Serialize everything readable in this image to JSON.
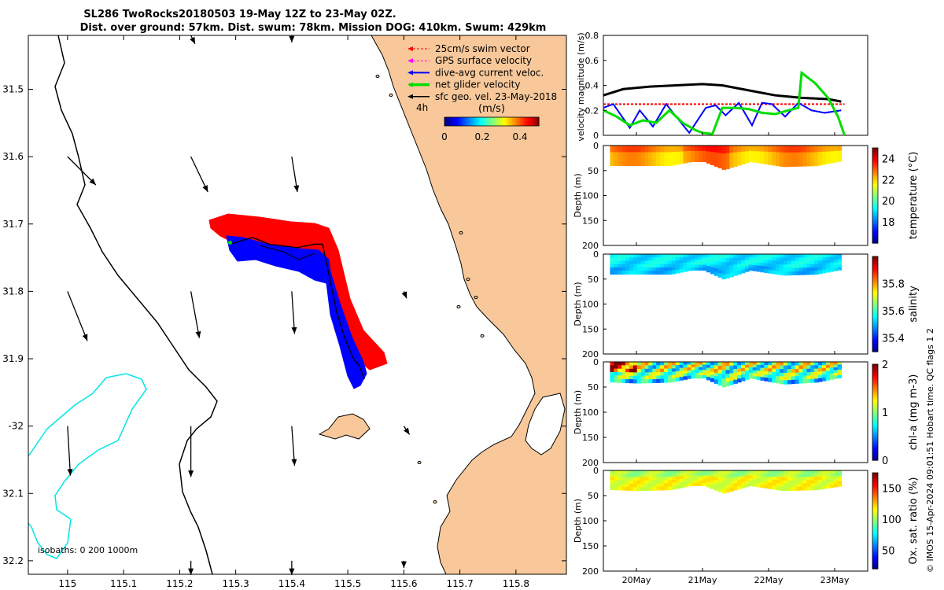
{
  "title_line1": "SL286 TwoRocks20180503 19-May 12Z to 23-May 02Z.",
  "title_line2": "Dist. over ground: 57km. Dist. swum: 78km. Mission DOG: 410km. Swum: 429km",
  "credit": "© IMOS 15-Apr-2024 09:01:51 Hobart time. QC flags 1  2",
  "colors": {
    "land": "#f8c89a",
    "swim": "#ff0000",
    "gps": "#ff00ff",
    "dive": "#0000ff",
    "net": "#00dd00",
    "geo": "#000000",
    "isobath200": "#000000",
    "isobath1000": "#00e5e5"
  },
  "chart_data": [
    {
      "type": "map",
      "name": "glider track and velocities",
      "xlim": [
        114.93,
        115.89
      ],
      "ylim": [
        32.22,
        31.42
      ],
      "xticks": [
        115,
        115.1,
        115.2,
        115.3,
        115.4,
        115.5,
        115.6,
        115.7,
        115.8
      ],
      "xtick_labels": [
        "115",
        "115.1",
        "115.2",
        "115.3",
        "115.4",
        "115.5",
        "115.6",
        "115.7",
        "115.8"
      ],
      "yticks": [
        31.5,
        31.6,
        31.7,
        31.8,
        31.9,
        32,
        32.1,
        32.2
      ],
      "ytick_labels": [
        "31.5",
        "31.6",
        "31.7",
        "31.8",
        "31.9",
        "-32",
        "32.1",
        "32.2"
      ],
      "legend": {
        "placement": "top-right",
        "entries": [
          "25cm/s swim vector",
          "GPS surface velocity",
          "dive-avg current veloc.",
          "net glider velocity",
          "sfc geo. vel. 23-May-2018"
        ],
        "arrow_interval": "4h"
      },
      "colorbar": {
        "label": "(m/s)",
        "ticks": [
          0,
          0.2,
          0.4
        ],
        "range": [
          0,
          0.5
        ]
      },
      "isobaths_label": "isobaths: 0   200  1000m",
      "track": [
        [
          115.29,
          31.73
        ],
        [
          115.33,
          31.72
        ],
        [
          115.36,
          31.73
        ],
        [
          115.41,
          31.735
        ],
        [
          115.44,
          31.73
        ],
        [
          115.455,
          31.73
        ],
        [
          115.47,
          31.79
        ],
        [
          115.48,
          31.83
        ],
        [
          115.495,
          31.87
        ],
        [
          115.51,
          31.9
        ],
        [
          115.52,
          31.91
        ],
        [
          115.53,
          31.93
        ]
      ],
      "geo_vectors": [
        {
          "lon": 115.0,
          "lat": 31.6,
          "u": 0.2,
          "v": -0.2
        },
        {
          "lon": 115.22,
          "lat": 31.6,
          "u": 0.12,
          "v": -0.25
        },
        {
          "lon": 115.4,
          "lat": 31.6,
          "u": 0.04,
          "v": -0.25
        },
        {
          "lon": 115.0,
          "lat": 31.8,
          "u": 0.14,
          "v": -0.35
        },
        {
          "lon": 115.22,
          "lat": 31.8,
          "u": 0.06,
          "v": -0.33
        },
        {
          "lon": 115.4,
          "lat": 31.8,
          "u": 0.02,
          "v": -0.3
        },
        {
          "lon": 115.6,
          "lat": 31.8,
          "u": 0.02,
          "v": -0.05
        },
        {
          "lon": 115.0,
          "lat": 32.0,
          "u": 0.02,
          "v": -0.35
        },
        {
          "lon": 115.22,
          "lat": 32.0,
          "u": 0.0,
          "v": -0.36
        },
        {
          "lon": 115.4,
          "lat": 32.0,
          "u": 0.02,
          "v": -0.28
        },
        {
          "lon": 115.6,
          "lat": 32.0,
          "u": 0.04,
          "v": -0.06
        },
        {
          "lon": 115.22,
          "lat": 31.42,
          "u": 0.03,
          "v": -0.06
        },
        {
          "lon": 115.4,
          "lat": 31.42,
          "u": 0.0,
          "v": -0.05
        },
        {
          "lon": 115.22,
          "lat": 32.2,
          "u": 0.0,
          "v": -0.1
        },
        {
          "lon": 115.4,
          "lat": 32.2,
          "u": 0.0,
          "v": -0.1
        },
        {
          "lon": 115.6,
          "lat": 32.2,
          "u": 0.0,
          "v": -0.05
        }
      ]
    },
    {
      "type": "line",
      "name": "velocity magnitude",
      "ylabel": "velocity magnitude (m/s)",
      "xlim": [
        19.5,
        23.5
      ],
      "ylim": [
        0,
        0.8
      ],
      "yticks": [
        0,
        0.2,
        0.4,
        0.6,
        0.8
      ],
      "ytick_labels": [
        "0",
        "0.2",
        "0.4",
        "0.6",
        "0.8"
      ],
      "series": [
        {
          "name": "sfc geo. vel.",
          "color": "#000000",
          "x": [
            19.5,
            19.8,
            20.2,
            20.6,
            21.0,
            21.3,
            21.7,
            22.1,
            22.5,
            22.9,
            23.1
          ],
          "values": [
            0.32,
            0.37,
            0.39,
            0.4,
            0.41,
            0.4,
            0.36,
            0.32,
            0.3,
            0.29,
            0.27
          ]
        },
        {
          "name": "25cm/s swim",
          "color": "#ff0000",
          "x": [
            19.5,
            23.15
          ],
          "values": [
            0.25,
            0.25
          ]
        },
        {
          "name": "dive-avg current",
          "color": "#0000ff",
          "x": [
            19.5,
            19.65,
            19.9,
            20.05,
            20.25,
            20.45,
            20.6,
            20.8,
            21.05,
            21.2,
            21.35,
            21.55,
            21.75,
            21.9,
            22.05,
            22.25,
            22.45,
            22.65,
            22.85,
            23.1
          ],
          "values": [
            0.22,
            0.25,
            0.06,
            0.2,
            0.07,
            0.25,
            0.15,
            0.02,
            0.22,
            0.24,
            0.16,
            0.26,
            0.08,
            0.26,
            0.25,
            0.15,
            0.26,
            0.2,
            0.18,
            0.2
          ]
        },
        {
          "name": "net glider velocity",
          "color": "#00dd00",
          "x": [
            19.5,
            19.7,
            19.9,
            20.1,
            20.3,
            20.5,
            20.7,
            20.9,
            21.0,
            21.15,
            21.3,
            21.5,
            21.7,
            21.9,
            22.1,
            22.3,
            22.45,
            22.5,
            22.7,
            22.9,
            23.05,
            23.15
          ],
          "values": [
            0.2,
            0.15,
            0.08,
            0.12,
            0.1,
            0.2,
            0.1,
            0.04,
            0.02,
            0.01,
            0.22,
            0.22,
            0.21,
            0.18,
            0.17,
            0.2,
            0.22,
            0.5,
            0.42,
            0.3,
            0.15,
            0.0
          ]
        }
      ]
    },
    {
      "type": "heatmap",
      "name": "temperature section",
      "colorbar_label": "temperature (°C)",
      "clim": [
        16,
        25
      ],
      "cticks": [
        18,
        20,
        22,
        24
      ],
      "ylabel": "Depth (m)",
      "ylim": [
        0,
        200
      ],
      "yticks": [
        0,
        50,
        100,
        150,
        200
      ],
      "xlim": [
        19.5,
        23.5
      ],
      "profile_depth": {
        "x": [
          19.6,
          20.0,
          20.5,
          20.8,
          21.0,
          21.3,
          21.7,
          22.2,
          22.7,
          23.1
        ],
        "values": [
          40,
          40,
          40,
          32,
          32,
          48,
          32,
          42,
          40,
          30
        ]
      },
      "typical_value": 22.4
    },
    {
      "type": "heatmap",
      "name": "salinity section",
      "colorbar_label": "salinity",
      "clim": [
        35.3,
        36.0
      ],
      "cticks": [
        35.4,
        35.6,
        35.8
      ],
      "ylabel": "Depth (m)",
      "ylim": [
        0,
        200
      ],
      "yticks": [
        0,
        50,
        100,
        150,
        200
      ],
      "xlim": [
        19.5,
        23.5
      ],
      "profile_depth": {
        "x": [
          19.6,
          20.0,
          20.5,
          20.8,
          21.0,
          21.3,
          21.7,
          22.2,
          22.7,
          23.1
        ],
        "values": [
          40,
          40,
          40,
          32,
          32,
          50,
          32,
          42,
          40,
          30
        ]
      },
      "typical_value": 35.55
    },
    {
      "type": "heatmap",
      "name": "chlorophyll section",
      "colorbar_label": "chl-a (mg m-3)",
      "clim": [
        0,
        2
      ],
      "cticks": [
        0,
        1,
        2
      ],
      "ylabel": "Depth (m)",
      "ylim": [
        0,
        200
      ],
      "yticks": [
        0,
        50,
        100,
        150,
        200
      ],
      "xlim": [
        19.5,
        23.5
      ],
      "profile_depth": {
        "x": [
          19.6,
          20.0,
          20.5,
          20.8,
          21.0,
          21.3,
          21.7,
          22.2,
          22.7,
          23.1
        ],
        "values": [
          40,
          42,
          40,
          32,
          32,
          50,
          32,
          44,
          40,
          30
        ]
      },
      "typical_value": 1.0
    },
    {
      "type": "heatmap",
      "name": "oxygen saturation section",
      "colorbar_label": "Ox. sat. ratio (%)",
      "clim": [
        20,
        175
      ],
      "cticks": [
        50,
        100,
        150
      ],
      "ylabel": "Depth (m)",
      "ylim": [
        0,
        200
      ],
      "yticks": [
        0,
        50,
        100,
        150,
        200
      ],
      "xlim": [
        19.5,
        23.5
      ],
      "xticks": [
        20,
        21,
        22,
        23
      ],
      "xtick_labels": [
        "20May",
        "21May",
        "22May",
        "23May"
      ],
      "profile_depth": {
        "x": [
          19.6,
          20.0,
          20.5,
          20.8,
          21.0,
          21.3,
          21.7,
          22.2,
          22.7,
          23.1
        ],
        "values": [
          38,
          40,
          38,
          30,
          30,
          45,
          30,
          40,
          38,
          30
        ]
      },
      "typical_value": 110
    }
  ]
}
